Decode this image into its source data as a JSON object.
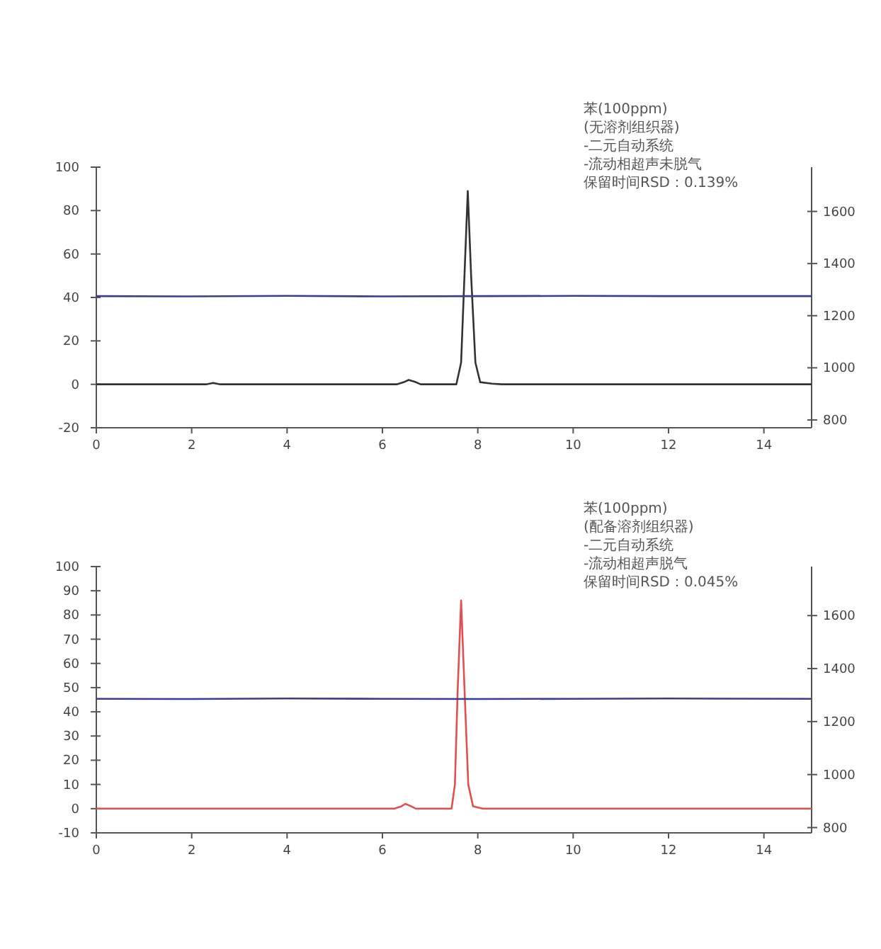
{
  "chart_data": [
    {
      "type": "line",
      "xlim": [
        0,
        15
      ],
      "xticks": [
        0,
        2,
        4,
        6,
        8,
        10,
        12,
        14
      ],
      "ylim": [
        -20,
        100
      ],
      "yticks": [
        -20,
        0,
        20,
        40,
        60,
        80,
        100
      ],
      "y2lim": [
        770,
        1770
      ],
      "y2ticks": [
        800,
        1000,
        1200,
        1400,
        1600
      ],
      "annotations": [
        "苯(100ppm)",
        "(无溶剂组织器)",
        "-二元自动系统",
        "-流动相超声未脱气",
        "保留时间RSD：0.139%"
      ],
      "series": [
        {
          "color": "#333333",
          "x": [
            0,
            2.3,
            2.45,
            2.6,
            6.3,
            6.45,
            6.55,
            6.7,
            6.8,
            7.55,
            7.65,
            7.72,
            7.79,
            7.86,
            7.95,
            8.05,
            8.3,
            8.5,
            15
          ],
          "values": [
            0,
            0,
            0.6,
            0,
            0,
            1,
            2,
            1,
            0,
            0,
            10,
            50,
            89,
            50,
            10,
            1,
            0.3,
            0,
            0
          ]
        },
        {
          "color": "#3c3c8c",
          "axis": "y2",
          "x": [
            0,
            2,
            4,
            6,
            8,
            10,
            12,
            15
          ],
          "values": [
            1275,
            1274,
            1276,
            1274,
            1275,
            1276,
            1275,
            1275
          ]
        }
      ]
    },
    {
      "type": "line",
      "xlim": [
        0,
        15
      ],
      "xticks": [
        0,
        2,
        4,
        6,
        8,
        10,
        12,
        14
      ],
      "ylim": [
        -10,
        100
      ],
      "yticks": [
        -10,
        0,
        10,
        20,
        30,
        40,
        50,
        60,
        70,
        80,
        90,
        100
      ],
      "y2lim": [
        780,
        1785
      ],
      "y2ticks": [
        800,
        1000,
        1200,
        1400,
        1600
      ],
      "annotations": [
        "苯(100ppm)",
        "(配备溶剂组织器)",
        "-二元自动系统",
        "-流动相超声脱气",
        "保留时间RSD：0.045%"
      ],
      "series": [
        {
          "color": "#e05050",
          "x": [
            0,
            6.25,
            6.4,
            6.48,
            6.6,
            6.7,
            7.45,
            7.52,
            7.58,
            7.65,
            7.72,
            7.8,
            7.9,
            8.1,
            15
          ],
          "values": [
            0,
            0,
            1,
            2,
            1,
            0,
            0,
            10,
            50,
            86,
            50,
            10,
            1,
            0,
            0
          ]
        },
        {
          "color": "#3c3c8c",
          "axis": "y2",
          "x": [
            0,
            2,
            4,
            6,
            8,
            10,
            12,
            15
          ],
          "values": [
            1286,
            1285,
            1287,
            1286,
            1285,
            1286,
            1287,
            1286
          ]
        }
      ]
    }
  ]
}
